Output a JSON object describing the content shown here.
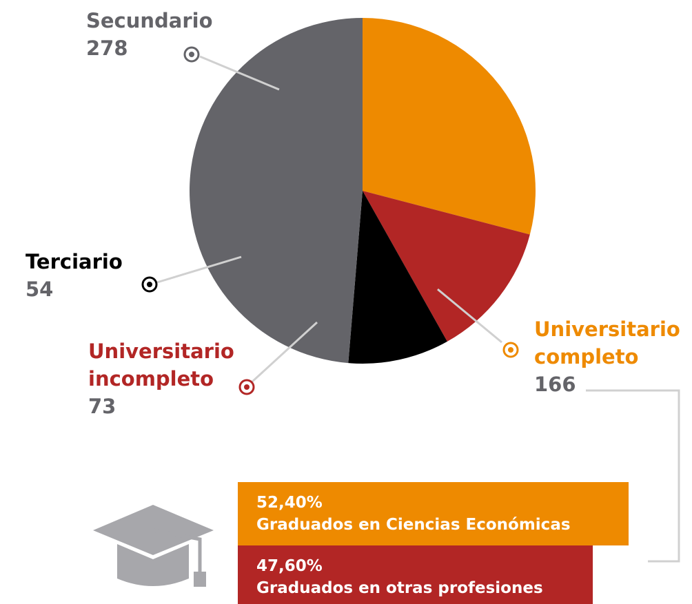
{
  "chart_data": [
    {
      "type": "pie",
      "categories": [
        "Universitario completo",
        "Universitario incompleto",
        "Terciario",
        "Secundario"
      ],
      "values": [
        166,
        73,
        54,
        278
      ],
      "colors": [
        "#ee8a00",
        "#b22625",
        "#000000",
        "#646469"
      ]
    },
    {
      "type": "hbar",
      "categories": [
        "Graduados en Ciencias Económicas",
        "Graduados en otras profesiones"
      ],
      "values": [
        52.4,
        47.6
      ],
      "value_labels": [
        "52,40%",
        "47,60%"
      ],
      "colors": [
        "#ee8a00",
        "#b22625"
      ]
    }
  ]
}
